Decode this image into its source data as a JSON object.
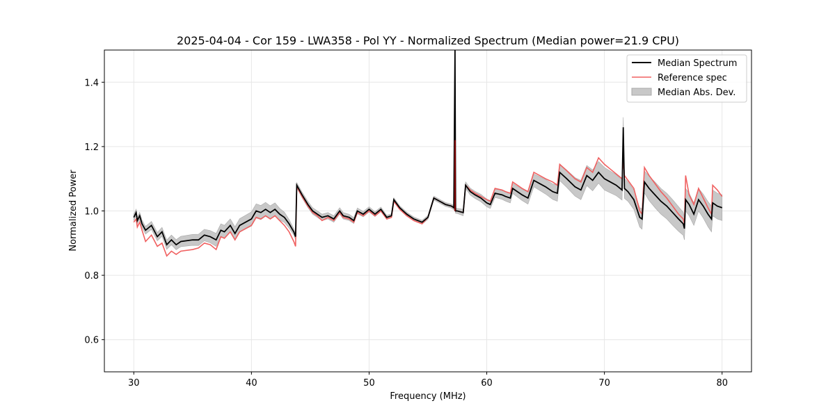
{
  "chart_data": {
    "type": "line",
    "title": "2025-04-04 - Cor 159 - LWA358 - Pol YY - Normalized Spectrum (Median power=21.9 CPU)",
    "xlabel": "Frequency (MHz)",
    "ylabel": "Normalized Power",
    "xlim": [
      27.5,
      82.5
    ],
    "ylim": [
      0.5,
      1.5
    ],
    "xticks": [
      30,
      40,
      50,
      60,
      70,
      80
    ],
    "yticks": [
      0.6,
      0.8,
      1.0,
      1.2,
      1.4
    ],
    "xtick_labels": [
      "30",
      "40",
      "50",
      "60",
      "70",
      "80"
    ],
    "ytick_labels": [
      "0.6",
      "0.8",
      "1.0",
      "1.2",
      "1.4"
    ],
    "grid": true,
    "legend_position": "top-right",
    "legend": [
      "Median Spectrum",
      "Reference spec",
      "Median Abs. Dev."
    ],
    "colors": {
      "median": "#000000",
      "reference": "#f06060",
      "mad_fill": "#c8c8c8",
      "mad_edge": "#a8a8a8",
      "grid": "#e6e6e6"
    },
    "series": [
      {
        "name": "Median Spectrum",
        "x": [
          30.0,
          30.2,
          30.3,
          30.5,
          30.7,
          31.0,
          31.5,
          32.0,
          32.4,
          32.8,
          33.2,
          33.6,
          34.0,
          35.0,
          35.5,
          36.0,
          36.5,
          37.0,
          37.4,
          37.7,
          38.2,
          38.6,
          39.0,
          39.5,
          40.0,
          40.4,
          40.8,
          41.2,
          41.6,
          42.0,
          42.4,
          42.8,
          43.2,
          43.6,
          43.75,
          43.85,
          44.3,
          44.8,
          45.2,
          45.6,
          46.0,
          46.5,
          47.0,
          47.5,
          47.8,
          48.3,
          48.7,
          49.0,
          49.5,
          50.0,
          50.5,
          51.0,
          51.5,
          51.9,
          52.1,
          52.6,
          53.2,
          53.8,
          54.5,
          55.0,
          55.5,
          56.0,
          56.5,
          57.0,
          57.2,
          57.3,
          57.35,
          57.5,
          58.0,
          58.2,
          58.6,
          59.0,
          59.5,
          60.0,
          60.3,
          60.7,
          61.3,
          61.6,
          62.0,
          62.2,
          62.6,
          63.0,
          63.5,
          64.0,
          64.5,
          65.0,
          65.6,
          66.0,
          66.2,
          66.8,
          67.5,
          68.0,
          68.5,
          69.0,
          69.5,
          70.0,
          70.5,
          71.0,
          71.5,
          71.6,
          71.7,
          72.0,
          72.5,
          73.0,
          73.2,
          73.4,
          73.8,
          74.3,
          74.8,
          75.3,
          75.8,
          76.3,
          76.7,
          76.8,
          76.9,
          77.2,
          77.6,
          78.0,
          78.4,
          78.8,
          79.1,
          79.2,
          79.6,
          80.0
        ],
        "values": [
          0.98,
          0.995,
          0.97,
          0.985,
          0.96,
          0.94,
          0.955,
          0.92,
          0.935,
          0.895,
          0.91,
          0.895,
          0.905,
          0.91,
          0.91,
          0.925,
          0.92,
          0.91,
          0.94,
          0.935,
          0.955,
          0.93,
          0.955,
          0.965,
          0.975,
          1.0,
          0.995,
          1.005,
          0.995,
          1.005,
          0.99,
          0.98,
          0.96,
          0.935,
          0.92,
          1.08,
          1.05,
          1.02,
          1.0,
          0.99,
          0.98,
          0.985,
          0.975,
          1.0,
          0.985,
          0.98,
          0.97,
          1.0,
          0.99,
          1.005,
          0.99,
          1.005,
          0.98,
          0.985,
          1.035,
          1.01,
          0.99,
          0.975,
          0.965,
          0.98,
          1.04,
          1.03,
          1.02,
          1.015,
          1.01,
          1.5,
          1.0,
          1.0,
          0.995,
          1.08,
          1.06,
          1.05,
          1.04,
          1.025,
          1.02,
          1.055,
          1.05,
          1.045,
          1.04,
          1.07,
          1.06,
          1.05,
          1.04,
          1.095,
          1.085,
          1.075,
          1.06,
          1.055,
          1.12,
          1.1,
          1.075,
          1.065,
          1.11,
          1.095,
          1.12,
          1.1,
          1.09,
          1.08,
          1.065,
          1.26,
          1.07,
          1.06,
          1.035,
          0.98,
          0.975,
          1.09,
          1.07,
          1.05,
          1.03,
          1.015,
          0.995,
          0.975,
          0.96,
          0.945,
          1.035,
          1.02,
          0.99,
          1.035,
          1.015,
          0.99,
          0.975,
          1.025,
          1.015,
          1.01
        ]
      },
      {
        "name": "Reference spec",
        "x": [
          30.0,
          30.2,
          30.3,
          30.5,
          30.7,
          31.0,
          31.5,
          32.0,
          32.4,
          32.8,
          33.2,
          33.6,
          34.0,
          35.0,
          35.5,
          36.0,
          36.5,
          37.0,
          37.4,
          37.7,
          38.2,
          38.6,
          39.0,
          39.5,
          40.0,
          40.4,
          40.8,
          41.2,
          41.6,
          42.0,
          42.4,
          42.8,
          43.2,
          43.6,
          43.75,
          43.85,
          44.3,
          44.8,
          45.2,
          45.6,
          46.0,
          46.5,
          47.0,
          47.5,
          47.8,
          48.3,
          48.7,
          49.0,
          49.5,
          50.0,
          50.5,
          51.0,
          51.5,
          51.9,
          52.1,
          52.6,
          53.2,
          53.8,
          54.5,
          55.0,
          55.5,
          56.0,
          56.5,
          57.0,
          57.2,
          57.3,
          57.35,
          57.5,
          58.0,
          58.2,
          58.6,
          59.0,
          59.5,
          60.0,
          60.3,
          60.7,
          61.3,
          61.6,
          62.0,
          62.2,
          62.6,
          63.0,
          63.5,
          64.0,
          64.5,
          65.0,
          65.6,
          66.0,
          66.2,
          66.8,
          67.5,
          68.0,
          68.5,
          69.0,
          69.5,
          70.0,
          70.5,
          71.0,
          71.5,
          71.6,
          71.7,
          72.0,
          72.5,
          73.0,
          73.2,
          73.4,
          73.8,
          74.3,
          74.8,
          75.3,
          75.8,
          76.3,
          76.7,
          76.8,
          76.9,
          77.2,
          77.6,
          78.0,
          78.4,
          78.8,
          79.1,
          79.2,
          79.6,
          80.0
        ],
        "values": [
          0.965,
          0.975,
          0.95,
          0.965,
          0.94,
          0.905,
          0.925,
          0.89,
          0.9,
          0.86,
          0.875,
          0.865,
          0.875,
          0.88,
          0.885,
          0.9,
          0.895,
          0.88,
          0.92,
          0.915,
          0.935,
          0.91,
          0.935,
          0.945,
          0.955,
          0.98,
          0.975,
          0.985,
          0.975,
          0.985,
          0.97,
          0.955,
          0.935,
          0.905,
          0.89,
          1.075,
          1.045,
          1.015,
          0.995,
          0.985,
          0.97,
          0.98,
          0.97,
          0.995,
          0.98,
          0.975,
          0.965,
          0.995,
          0.985,
          1.0,
          0.985,
          1.0,
          0.975,
          0.98,
          1.03,
          1.005,
          0.985,
          0.97,
          0.96,
          0.98,
          1.04,
          1.03,
          1.02,
          1.015,
          1.01,
          1.22,
          1.0,
          1.0,
          0.995,
          1.08,
          1.065,
          1.055,
          1.045,
          1.035,
          1.03,
          1.07,
          1.065,
          1.06,
          1.055,
          1.09,
          1.08,
          1.07,
          1.06,
          1.12,
          1.11,
          1.1,
          1.09,
          1.08,
          1.145,
          1.125,
          1.1,
          1.09,
          1.135,
          1.12,
          1.165,
          1.145,
          1.13,
          1.115,
          1.1,
          1.16,
          1.11,
          1.095,
          1.07,
          1.0,
          0.99,
          1.135,
          1.11,
          1.085,
          1.06,
          1.04,
          1.015,
          0.99,
          0.975,
          0.96,
          1.11,
          1.05,
          1.02,
          1.07,
          1.04,
          1.01,
          0.99,
          1.08,
          1.065,
          1.045
        ]
      },
      {
        "name": "Median Abs. Dev.",
        "x": [
          30.0,
          31.0,
          32.0,
          33.0,
          34.0,
          36.0,
          37.0,
          38.0,
          40.0,
          41.0,
          42.0,
          43.0,
          43.8,
          45.0,
          48.0,
          52.0,
          55.0,
          57.0,
          58.0,
          60.0,
          62.0,
          64.0,
          66.0,
          68.0,
          70.0,
          72.0,
          73.0,
          74.0,
          75.0,
          76.0,
          76.8,
          77.0,
          78.0,
          79.0,
          80.0
        ],
        "mad": [
          0.01,
          0.012,
          0.013,
          0.015,
          0.016,
          0.018,
          0.02,
          0.02,
          0.022,
          0.022,
          0.02,
          0.015,
          0.008,
          0.01,
          0.01,
          0.006,
          0.006,
          0.006,
          0.01,
          0.012,
          0.015,
          0.02,
          0.025,
          0.03,
          0.035,
          0.03,
          0.03,
          0.04,
          0.04,
          0.04,
          0.035,
          0.035,
          0.035,
          0.04,
          0.04
        ]
      }
    ]
  }
}
